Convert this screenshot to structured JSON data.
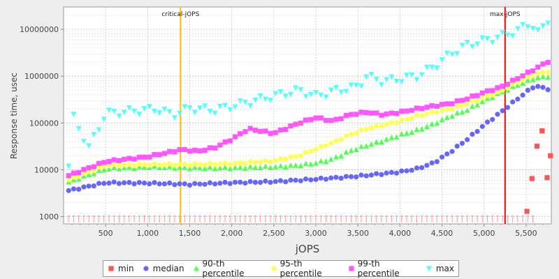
{
  "chart_data": {
    "type": "scatter",
    "xlabel": "jOPS",
    "ylabel": "Response time, usec",
    "y_scale": "log",
    "xlim": [
      0,
      5800
    ],
    "ylim": [
      700,
      30000000
    ],
    "x_ticks": [
      "500",
      "1,000",
      "1,500",
      "2,000",
      "2,500",
      "3,000",
      "3,500",
      "4,000",
      "4,500",
      "5,000",
      "5,500"
    ],
    "y_ticks": [
      "1000",
      "10000",
      "100000",
      "1000000",
      "10000000"
    ],
    "grid": true,
    "legend_position": "bottom",
    "markers": [
      {
        "label": "critical-jOPS",
        "x": 1390,
        "color": "#ffc000"
      },
      {
        "label": "max-jOPS",
        "x": 5250,
        "color": "#ff0000"
      }
    ],
    "series": [
      {
        "name": "min",
        "color": "#ff5555",
        "symbol": "square",
        "x": [
          5510,
          5570,
          5630,
          5690,
          5750,
          5790
        ],
        "y": [
          1300,
          6500,
          32000,
          68000,
          6800,
          20000
        ]
      },
      {
        "name": "median",
        "color": "#6666ff",
        "symbol": "circle",
        "x": [
          60,
          500,
          1000,
          1500,
          2000,
          2500,
          3000,
          3500,
          4000,
          4200,
          4400,
          4600,
          4800,
          5000,
          5200,
          5400,
          5600,
          5790
        ],
        "y": [
          3600,
          5300,
          5200,
          4900,
          5300,
          5600,
          6300,
          7300,
          9000,
          10500,
          14000,
          24000,
          45000,
          90000,
          170000,
          330000,
          620000,
          520000
        ]
      },
      {
        "name": "90-th percentile",
        "color": "#55ff55",
        "symbol": "triangle-up",
        "x": [
          60,
          500,
          1000,
          1500,
          2000,
          2500,
          2800,
          3000,
          3200,
          3400,
          3600,
          3800,
          4000,
          4200,
          4400,
          4600,
          4800,
          5000,
          5200,
          5400,
          5600,
          5790
        ],
        "y": [
          5500,
          10500,
          11500,
          11000,
          11000,
          11500,
          12500,
          14000,
          17000,
          25000,
          33000,
          42000,
          55000,
          70000,
          95000,
          140000,
          190000,
          300000,
          450000,
          650000,
          900000,
          1000000
        ]
      },
      {
        "name": "95-th percentile",
        "color": "#ffff55",
        "symbol": "circle",
        "x": [
          60,
          500,
          1000,
          1500,
          2000,
          2500,
          2800,
          3000,
          3200,
          3400,
          3600,
          3800,
          4000,
          4200,
          4400,
          4600,
          4800,
          5000,
          5200,
          5400,
          5600,
          5790
        ],
        "y": [
          6200,
          12500,
          13000,
          13000,
          13500,
          15500,
          20000,
          28000,
          38000,
          55000,
          75000,
          90000,
          110000,
          140000,
          170000,
          200000,
          260000,
          350000,
          480000,
          750000,
          1100000,
          1300000
        ]
      },
      {
        "name": "99-th percentile",
        "color": "#ff55ff",
        "symbol": "square",
        "x": [
          60,
          500,
          1000,
          1400,
          1600,
          1800,
          2000,
          2200,
          2500,
          2800,
          3000,
          3200,
          3400,
          3600,
          3800,
          4000,
          4200,
          4400,
          4600,
          4800,
          5000,
          5200,
          5400,
          5600,
          5790
        ],
        "y": [
          7500,
          15000,
          19000,
          27000,
          25000,
          30000,
          45000,
          75000,
          60000,
          100000,
          130000,
          110000,
          150000,
          170000,
          150000,
          170000,
          200000,
          230000,
          260000,
          330000,
          450000,
          580000,
          900000,
          1400000,
          2200000
        ]
      },
      {
        "name": "max",
        "color": "#55ffff",
        "symbol": "triangle-down",
        "x": [
          60,
          120,
          300,
          500,
          800,
          1100,
          1300,
          1500,
          1800,
          2000,
          2200,
          2500,
          2800,
          3000,
          3200,
          3500,
          3600,
          3800,
          4000,
          4200,
          4400,
          4600,
          4800,
          5000,
          5200,
          5400,
          5550,
          5650,
          5790
        ],
        "y": [
          12000,
          130000,
          30000,
          160000,
          180000,
          200000,
          150000,
          210000,
          190000,
          230000,
          280000,
          380000,
          500000,
          380000,
          480000,
          600000,
          1000000,
          780000,
          880000,
          1000000,
          1600000,
          3000000,
          4700000,
          5800000,
          7000000,
          9500000,
          14000000,
          8000000,
          20000000
        ]
      }
    ]
  }
}
